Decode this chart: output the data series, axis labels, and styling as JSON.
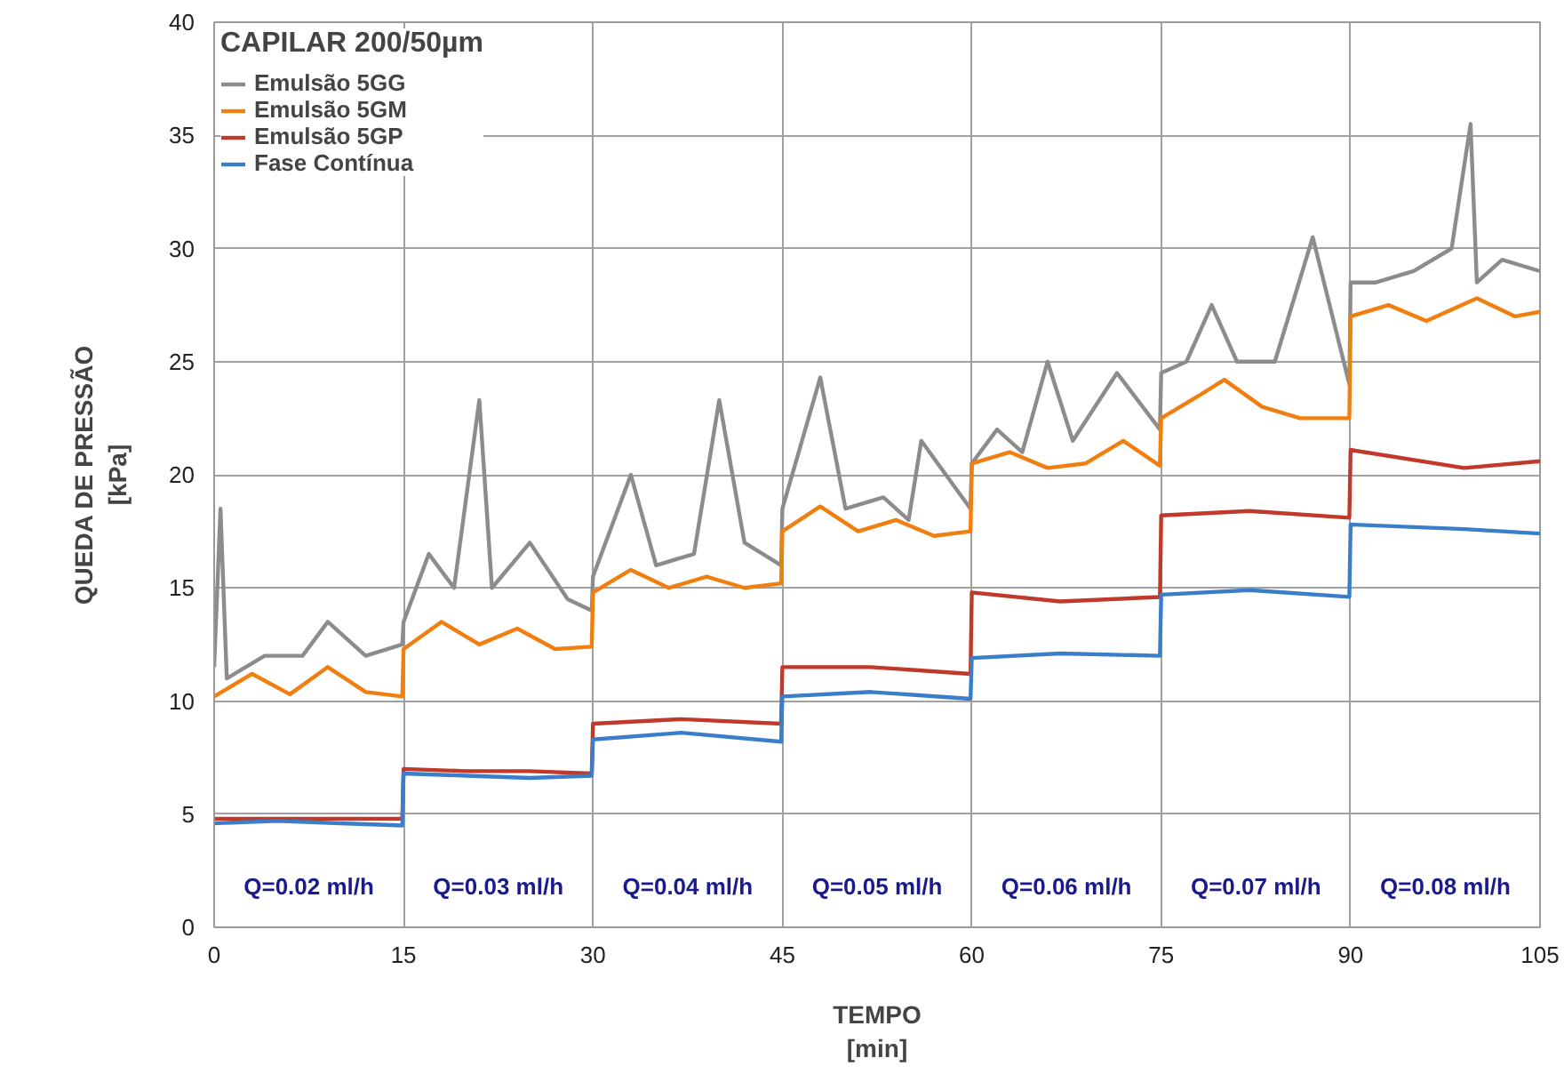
{
  "chart_data": {
    "type": "line",
    "xlabel": "TEMPO\n[min]",
    "ylabel": "QUEDA DE PRESSÃO\n[kPa]",
    "legend_title": "CAPILAR 200/50µm",
    "legend": "top left",
    "grid": true,
    "line_style": "solid",
    "marker": "none",
    "xlim": [
      0,
      105
    ],
    "xticks": [
      0,
      15,
      30,
      45,
      60,
      75,
      90,
      105
    ],
    "ylim": [
      0,
      40
    ],
    "yticks": [
      0,
      5,
      10,
      15,
      20,
      25,
      30,
      35,
      40
    ],
    "series": [
      {
        "name": "Emulsão 5GG",
        "color": "#8c8c8c",
        "x": [
          0,
          0.5,
          1,
          4,
          7,
          9,
          12,
          14.9,
          15,
          17,
          19,
          21,
          22,
          25,
          28,
          29.9,
          30,
          33,
          35,
          38,
          40,
          42,
          44.9,
          45,
          48,
          50,
          53,
          55,
          56,
          59.9,
          60,
          62,
          64,
          66,
          68,
          71.5,
          74.9,
          75,
          77,
          79,
          81,
          84,
          87,
          89.9,
          90,
          92,
          95,
          98,
          99.5,
          100,
          102,
          105
        ],
        "values": [
          11.5,
          18.5,
          11,
          12,
          12,
          13.5,
          12,
          12.5,
          13.5,
          16.5,
          15,
          23.3,
          15,
          17,
          14.5,
          14,
          15.5,
          20,
          16,
          16.5,
          23.3,
          17,
          16,
          18.5,
          24.3,
          18.5,
          19,
          18,
          21.5,
          18.5,
          20.5,
          22,
          21,
          25,
          21.5,
          24.5,
          22,
          24.5,
          25,
          27.5,
          25,
          25,
          30.5,
          24,
          28.5,
          28.5,
          29,
          30,
          35.5,
          28.5,
          29.5,
          29
        ]
      },
      {
        "name": "Emulsão 5GM",
        "color": "#f07f10",
        "x": [
          0,
          3,
          6,
          9,
          12,
          14.9,
          15,
          18,
          21,
          24,
          27,
          29.9,
          30,
          33,
          36,
          39,
          42,
          44.9,
          45,
          48,
          51,
          54,
          57,
          59.9,
          60,
          63,
          66,
          69,
          72,
          74.9,
          75,
          78,
          80,
          83,
          86,
          89.9,
          90,
          93,
          96,
          100,
          103,
          105
        ],
        "values": [
          10.2,
          11.2,
          10.3,
          11.5,
          10.4,
          10.2,
          12.3,
          13.5,
          12.5,
          13.2,
          12.3,
          12.4,
          14.8,
          15.8,
          15,
          15.5,
          15,
          15.2,
          17.5,
          18.6,
          17.5,
          18,
          17.3,
          17.5,
          20.5,
          21,
          20.3,
          20.5,
          21.5,
          20.4,
          22.5,
          23.5,
          24.2,
          23,
          22.5,
          22.5,
          27,
          27.5,
          26.8,
          27.8,
          27,
          27.2
        ]
      },
      {
        "name": "Emulsão 5GP",
        "color": "#c0392b",
        "x": [
          0,
          5,
          10,
          14.9,
          15,
          20,
          25,
          29.9,
          30,
          37,
          44.9,
          45,
          52,
          59.9,
          60,
          67,
          74.9,
          75,
          82,
          89.9,
          90,
          99,
          105
        ],
        "values": [
          4.8,
          4.8,
          4.8,
          4.8,
          7.0,
          6.9,
          6.9,
          6.8,
          9.0,
          9.2,
          9.0,
          11.5,
          11.5,
          11.2,
          14.8,
          14.4,
          14.6,
          18.2,
          18.4,
          18.1,
          21.1,
          20.3,
          20.6
        ]
      },
      {
        "name": "Fase Contínua",
        "color": "#3a7dc9",
        "x": [
          0,
          5,
          10,
          14.9,
          15,
          20,
          25,
          29.9,
          30,
          37,
          44.9,
          45,
          52,
          59.9,
          60,
          67,
          74.9,
          75,
          82,
          89.9,
          90,
          99,
          105
        ],
        "values": [
          4.6,
          4.7,
          4.6,
          4.5,
          6.8,
          6.7,
          6.6,
          6.7,
          8.3,
          8.6,
          8.2,
          10.2,
          10.4,
          10.1,
          11.9,
          12.1,
          12.0,
          14.7,
          14.9,
          14.6,
          17.8,
          17.6,
          17.4
        ]
      }
    ],
    "annotations": [
      "Q=0.02 ml/h",
      "Q=0.03 ml/h",
      "Q=0.04 ml/h",
      "Q=0.05 ml/h",
      "Q=0.06 ml/h",
      "Q=0.07 ml/h",
      "Q=0.08 ml/h"
    ]
  }
}
